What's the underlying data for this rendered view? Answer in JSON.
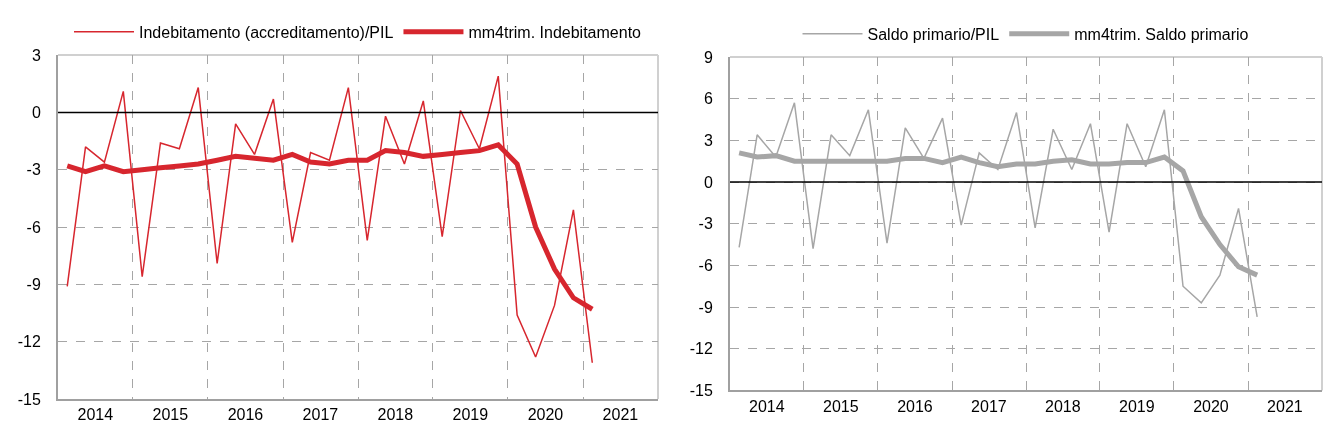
{
  "chart_data": [
    {
      "type": "line",
      "x": [
        "2014-02-15",
        "2014-05-15",
        "2014-08-15",
        "2014-11-15",
        "2015-02-15",
        "2015-05-15",
        "2015-08-15",
        "2015-11-15",
        "2016-02-15",
        "2016-05-15",
        "2016-08-15",
        "2016-11-15",
        "2017-02-15",
        "2017-05-15",
        "2017-08-15",
        "2017-11-15",
        "2018-02-15",
        "2018-05-15",
        "2018-08-15",
        "2018-11-15",
        "2019-02-15",
        "2019-05-15",
        "2019-08-15",
        "2019-11-15",
        "2020-02-15",
        "2020-05-15",
        "2020-08-15",
        "2020-11-15",
        "2021-02-15"
      ],
      "xlim": [
        "2014",
        "2022"
      ],
      "xticks": [
        {
          "value": "2014-07-02",
          "label": "2014"
        },
        {
          "value": "2015-07-02",
          "label": "2015"
        },
        {
          "value": "2016-07-02",
          "label": "2016"
        },
        {
          "value": "2017-07-02",
          "label": "2017"
        },
        {
          "value": "2018-07-02",
          "label": "2018"
        },
        {
          "value": "2019-07-02",
          "label": "2019"
        },
        {
          "value": "2020-07-02",
          "label": "2020"
        },
        {
          "value": "2021-07-02",
          "label": "2021"
        },
        {
          "value": "2015",
          "label": null
        },
        {
          "value": "2016",
          "label": null
        },
        {
          "value": "2017",
          "label": null
        },
        {
          "value": "2018",
          "label": null
        },
        {
          "value": "2019",
          "label": null
        },
        {
          "value": "2020",
          "label": null
        },
        {
          "value": "2021",
          "label": null
        }
      ],
      "ylim": [
        -15,
        3
      ],
      "yticks": [
        -15,
        -12,
        -9,
        -6,
        -3,
        0,
        3
      ],
      "grid": true,
      "legend": "top",
      "ref_lines": [
        {
          "axis": "y",
          "value": 0,
          "color": "#000000"
        }
      ],
      "series": [
        {
          "name": "Indebitamento (accreditamento)/PIL",
          "color": "#d7262e",
          "values": [
            -9.1,
            -1.8,
            -2.6,
            1.1,
            -8.6,
            -1.6,
            -1.9,
            1.3,
            -7.9,
            -0.6,
            -2.2,
            0.7,
            -6.8,
            -2.1,
            -2.5,
            1.3,
            -6.7,
            -0.2,
            -2.7,
            0.6,
            -6.5,
            0.1,
            -1.9,
            1.9,
            -10.6,
            -12.8,
            -10.1,
            -5.1,
            -13.1
          ]
        },
        {
          "name": "mm4trim. Indebitamento",
          "color": "#d7262e",
          "values": [
            -2.8,
            -3.1,
            -2.8,
            -3.1,
            -3.0,
            -2.9,
            -2.8,
            -2.7,
            -2.5,
            -2.3,
            -2.4,
            -2.5,
            -2.2,
            -2.6,
            -2.7,
            -2.5,
            -2.5,
            -2.0,
            -2.1,
            -2.3,
            -2.2,
            -2.1,
            -2.0,
            -1.7,
            -2.7,
            -6.0,
            -8.2,
            -9.7,
            -10.3
          ]
        }
      ]
    },
    {
      "type": "line",
      "x": [
        "2014-02-15",
        "2014-05-15",
        "2014-08-15",
        "2014-11-15",
        "2015-02-15",
        "2015-05-15",
        "2015-08-15",
        "2015-11-15",
        "2016-02-15",
        "2016-05-15",
        "2016-08-15",
        "2016-11-15",
        "2017-02-15",
        "2017-05-15",
        "2017-08-15",
        "2017-11-15",
        "2018-02-15",
        "2018-05-15",
        "2018-08-15",
        "2018-11-15",
        "2019-02-15",
        "2019-05-15",
        "2019-08-15",
        "2019-11-15",
        "2020-02-15",
        "2020-05-15",
        "2020-08-15",
        "2020-11-15",
        "2021-02-15"
      ],
      "xlim": [
        "2014",
        "2022"
      ],
      "xticks": [
        {
          "value": "2014-07-02",
          "label": "2014"
        },
        {
          "value": "2015-07-02",
          "label": "2015"
        },
        {
          "value": "2016-07-02",
          "label": "2016"
        },
        {
          "value": "2017-07-02",
          "label": "2017"
        },
        {
          "value": "2018-07-02",
          "label": "2018"
        },
        {
          "value": "2019-07-02",
          "label": "2019"
        },
        {
          "value": "2020-07-02",
          "label": "2020"
        },
        {
          "value": "2021-07-02",
          "label": "2021"
        },
        {
          "value": "2015",
          "label": null
        },
        {
          "value": "2016",
          "label": null
        },
        {
          "value": "2017",
          "label": null
        },
        {
          "value": "2018",
          "label": null
        },
        {
          "value": "2019",
          "label": null
        },
        {
          "value": "2020",
          "label": null
        },
        {
          "value": "2021",
          "label": null
        }
      ],
      "ylim": [
        -15,
        9
      ],
      "yticks": [
        -15,
        -12,
        -9,
        -6,
        -3,
        0,
        3,
        6,
        9
      ],
      "grid": true,
      "legend": "top",
      "ref_lines": [
        {
          "axis": "y",
          "value": 0,
          "color": "#000000"
        }
      ],
      "series": [
        {
          "name": "Saldo primario/PIL",
          "color": "#a6a6a6",
          "values": [
            -4.7,
            3.4,
            1.8,
            5.7,
            -4.8,
            3.4,
            1.9,
            5.2,
            -4.4,
            3.9,
            1.7,
            4.6,
            -3.1,
            2.1,
            0.9,
            5.0,
            -3.3,
            3.8,
            0.9,
            4.2,
            -3.6,
            4.2,
            1.1,
            5.2,
            -7.5,
            -8.7,
            -6.7,
            -1.9,
            -9.7
          ]
        },
        {
          "name": "mm4trim. Saldo primario",
          "color": "#a6a6a6",
          "values": [
            2.1,
            1.8,
            1.9,
            1.5,
            1.5,
            1.5,
            1.5,
            1.5,
            1.5,
            1.7,
            1.7,
            1.4,
            1.8,
            1.4,
            1.1,
            1.3,
            1.3,
            1.5,
            1.6,
            1.3,
            1.3,
            1.4,
            1.4,
            1.8,
            0.8,
            -2.5,
            -4.5,
            -6.1,
            -6.7
          ]
        }
      ]
    }
  ]
}
